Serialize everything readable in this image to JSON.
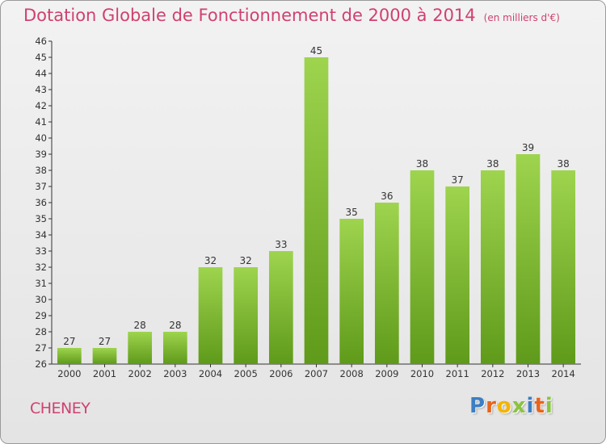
{
  "header": {
    "title": "Dotation Globale de Fonctionnement de 2000 à 2014",
    "unit": "(en milliers d'€)"
  },
  "commune": "CHENEY",
  "logo": {
    "letters": [
      "P",
      "r",
      "o",
      "x",
      "i",
      "t",
      "i"
    ],
    "colors": [
      "#3b7fc4",
      "#e8641b",
      "#f4b400",
      "#8ac43f",
      "#3b7fc4",
      "#e8641b",
      "#8ac43f"
    ]
  },
  "chart_data": {
    "type": "bar",
    "title": "Dotation Globale de Fonctionnement de 2000 à 2014",
    "subtitle": "(en milliers d'€)",
    "categories": [
      "2000",
      "2001",
      "2002",
      "2003",
      "2004",
      "2005",
      "2006",
      "2007",
      "2008",
      "2009",
      "2010",
      "2011",
      "2012",
      "2013",
      "2014"
    ],
    "values": [
      27,
      27,
      28,
      28,
      32,
      32,
      33,
      45,
      35,
      36,
      38,
      37,
      38,
      39,
      38
    ],
    "ylim": [
      26,
      46
    ],
    "ytick_step": 1,
    "grid": false,
    "bar_color": "#7dbb2e",
    "bar_color_light": "#9ed44e",
    "bar_color_dark": "#5f9a1a"
  }
}
